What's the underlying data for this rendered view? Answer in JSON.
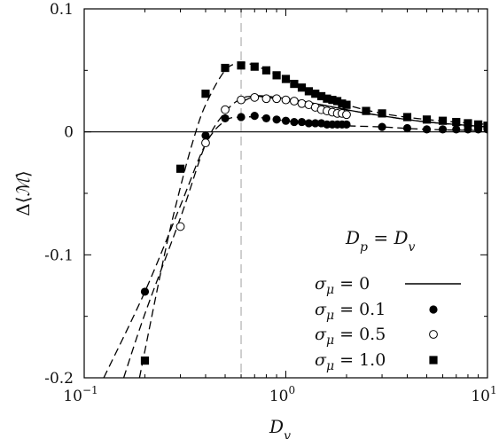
{
  "chart_data": {
    "type": "scatter",
    "xscale": "log",
    "xlim": [
      0.1,
      10
    ],
    "ylim": [
      -0.2,
      0.1
    ],
    "xlabel": "D_v",
    "ylabel": "Δ⟨ℳ⟩",
    "x_ticks": [
      {
        "value": 0.1,
        "base": "10",
        "exp": "−1"
      },
      {
        "value": 1,
        "base": "10",
        "exp": "0"
      },
      {
        "value": 10,
        "base": "10",
        "exp": "1"
      }
    ],
    "y_ticks": [
      {
        "value": 0.1,
        "label": "0.1"
      },
      {
        "value": 0,
        "label": "0"
      },
      {
        "value": -0.1,
        "label": "-0.1"
      },
      {
        "value": -0.2,
        "label": "-0.2"
      }
    ],
    "reference_lines": [
      {
        "orientation": "vertical",
        "x": 0.6,
        "style": "dashed",
        "color": "#bbbbbb"
      },
      {
        "orientation": "horizontal",
        "y": 0,
        "style": "solid",
        "color": "#000000"
      }
    ],
    "legend": {
      "title": "D_p = D_v",
      "placement": "bottom-right",
      "entries": [
        "σ_μ = 0",
        "σ_μ = 0.1",
        "σ_μ = 0.5",
        "σ_μ = 1.0"
      ]
    },
    "series": [
      {
        "name": "σ_μ = 0",
        "marker": "none",
        "line": "solid",
        "points": [
          [
            0.6,
            0.024
          ],
          [
            0.7,
            0.029
          ],
          [
            0.8,
            0.029
          ],
          [
            0.9,
            0.028
          ],
          [
            1.0,
            0.027
          ],
          [
            1.2,
            0.025
          ],
          [
            1.5,
            0.022
          ],
          [
            2.0,
            0.018
          ],
          [
            3.0,
            0.013
          ],
          [
            5.0,
            0.008
          ],
          [
            7.0,
            0.006
          ],
          [
            10.0,
            0.004
          ]
        ]
      },
      {
        "name": "σ_μ = 0.1",
        "marker": "filled-circle",
        "line": "dashed",
        "points": [
          [
            0.2,
            -0.13
          ],
          [
            0.4,
            -0.003
          ],
          [
            0.5,
            0.011
          ],
          [
            0.6,
            0.012
          ],
          [
            0.7,
            0.013
          ],
          [
            0.8,
            0.011
          ],
          [
            0.9,
            0.01
          ],
          [
            1.0,
            0.009
          ],
          [
            1.1,
            0.008
          ],
          [
            1.2,
            0.008
          ],
          [
            1.3,
            0.007
          ],
          [
            1.4,
            0.007
          ],
          [
            1.5,
            0.007
          ],
          [
            1.6,
            0.006
          ],
          [
            1.7,
            0.006
          ],
          [
            1.8,
            0.006
          ],
          [
            1.9,
            0.006
          ],
          [
            2.0,
            0.006
          ],
          [
            3.0,
            0.004
          ],
          [
            4.0,
            0.003
          ],
          [
            5.0,
            0.002
          ],
          [
            6.0,
            0.002
          ],
          [
            7.0,
            0.002
          ],
          [
            8.0,
            0.002
          ],
          [
            9.0,
            0.002
          ],
          [
            10.0,
            0.002
          ]
        ],
        "fit": [
          [
            0.125,
            -0.2
          ],
          [
            0.2,
            -0.13
          ],
          [
            0.3,
            -0.06
          ],
          [
            0.4,
            -0.01
          ],
          [
            0.5,
            0.009
          ],
          [
            0.6,
            0.012
          ],
          [
            0.7,
            0.012
          ],
          [
            0.8,
            0.011
          ],
          [
            1.0,
            0.009
          ],
          [
            1.5,
            0.007
          ],
          [
            2.0,
            0.005
          ],
          [
            3.0,
            0.004
          ],
          [
            5.0,
            0.002
          ],
          [
            10.0,
            0.001
          ]
        ]
      },
      {
        "name": "σ_μ = 0.5",
        "marker": "open-circle",
        "line": "dashed",
        "points": [
          [
            0.3,
            -0.077
          ],
          [
            0.4,
            -0.009
          ],
          [
            0.5,
            0.018
          ],
          [
            0.6,
            0.026
          ],
          [
            0.7,
            0.028
          ],
          [
            0.8,
            0.027
          ],
          [
            0.9,
            0.027
          ],
          [
            1.0,
            0.026
          ],
          [
            1.1,
            0.025
          ],
          [
            1.2,
            0.023
          ],
          [
            1.3,
            0.022
          ],
          [
            1.4,
            0.02
          ],
          [
            1.5,
            0.018
          ],
          [
            1.6,
            0.017
          ],
          [
            1.7,
            0.016
          ],
          [
            1.8,
            0.015
          ],
          [
            1.9,
            0.015
          ],
          [
            2.0,
            0.014
          ]
        ],
        "fit": [
          [
            0.157,
            -0.2
          ],
          [
            0.2,
            -0.148
          ],
          [
            0.3,
            -0.07
          ],
          [
            0.4,
            -0.01
          ],
          [
            0.5,
            0.016
          ],
          [
            0.6,
            0.027
          ],
          [
            0.7,
            0.029
          ],
          [
            0.8,
            0.028
          ],
          [
            1.0,
            0.026
          ],
          [
            1.5,
            0.022
          ],
          [
            2.0,
            0.018
          ],
          [
            3.0,
            0.013
          ],
          [
            5.0,
            0.008
          ],
          [
            10.0,
            0.004
          ]
        ]
      },
      {
        "name": "σ_μ = 1.0",
        "marker": "filled-square",
        "line": "dashed",
        "points": [
          [
            0.2,
            -0.186
          ],
          [
            0.3,
            -0.03
          ],
          [
            0.4,
            0.031
          ],
          [
            0.5,
            0.052
          ],
          [
            0.6,
            0.054
          ],
          [
            0.7,
            0.053
          ],
          [
            0.8,
            0.05
          ],
          [
            0.9,
            0.046
          ],
          [
            1.0,
            0.043
          ],
          [
            1.1,
            0.039
          ],
          [
            1.2,
            0.036
          ],
          [
            1.3,
            0.033
          ],
          [
            1.4,
            0.031
          ],
          [
            1.5,
            0.029
          ],
          [
            1.6,
            0.027
          ],
          [
            1.7,
            0.026
          ],
          [
            1.8,
            0.025
          ],
          [
            1.9,
            0.023
          ],
          [
            2.0,
            0.022
          ],
          [
            2.5,
            0.017
          ],
          [
            3.0,
            0.015
          ],
          [
            4.0,
            0.012
          ],
          [
            5.0,
            0.01
          ],
          [
            6.0,
            0.009
          ],
          [
            7.0,
            0.008
          ],
          [
            8.0,
            0.007
          ],
          [
            9.0,
            0.006
          ],
          [
            10.0,
            0.005
          ]
        ],
        "fit": [
          [
            0.188,
            -0.2
          ],
          [
            0.25,
            -0.1
          ],
          [
            0.3,
            -0.045
          ],
          [
            0.35,
            -0.005
          ],
          [
            0.4,
            0.022
          ],
          [
            0.5,
            0.05
          ],
          [
            0.6,
            0.056
          ],
          [
            0.7,
            0.054
          ],
          [
            0.8,
            0.05
          ],
          [
            1.0,
            0.043
          ],
          [
            1.5,
            0.03
          ],
          [
            2.0,
            0.022
          ],
          [
            3.0,
            0.015
          ],
          [
            5.0,
            0.01
          ],
          [
            10.0,
            0.006
          ]
        ]
      }
    ]
  }
}
